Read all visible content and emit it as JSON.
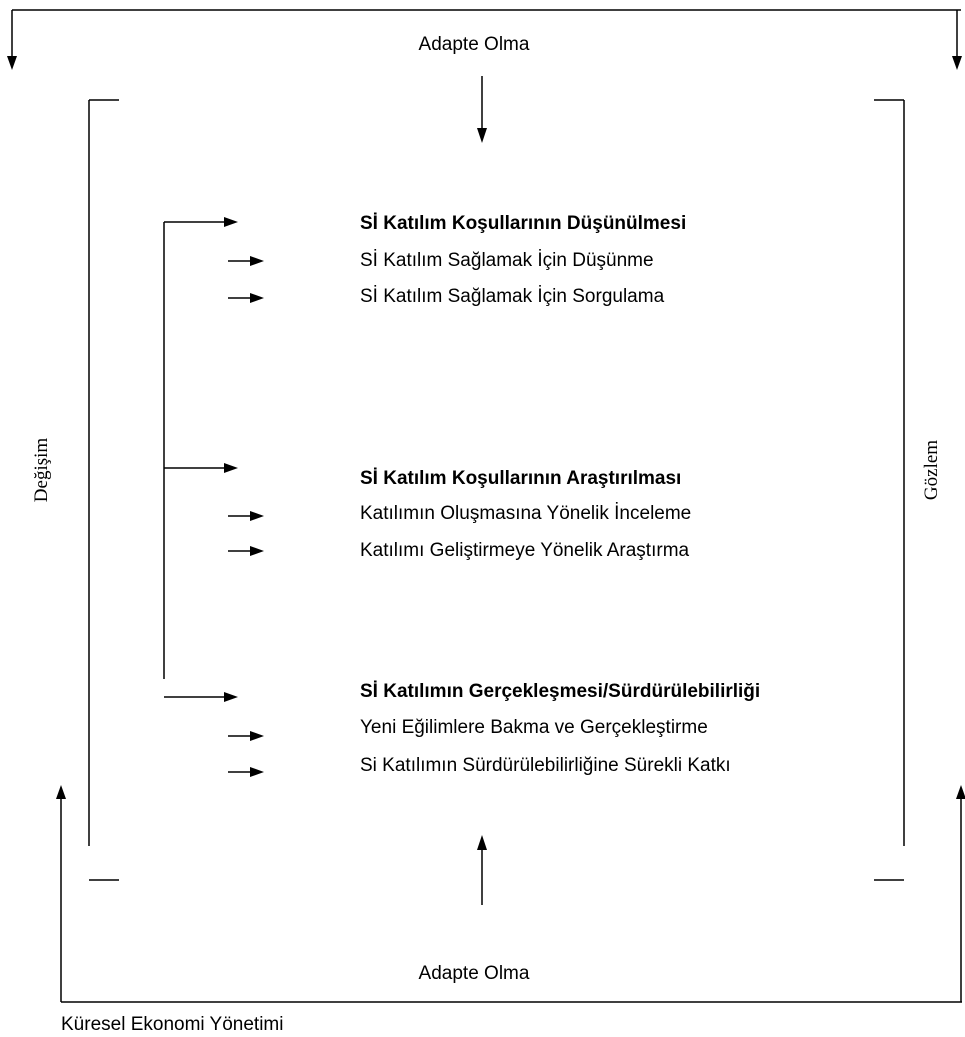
{
  "top_label": "Adapte Olma",
  "bottom_label": "Adapte Olma",
  "left_label": "Değişim",
  "right_label": "Gözlem",
  "footer_label": "Küresel Ekonomi Yönetimi",
  "sections": [
    {
      "heading": "Sİ Katılım Koşullarının Düşünülmesi",
      "items": [
        "Sİ Katılım Sağlamak İçin Düşünme",
        "Sİ Katılım Sağlamak İçin Sorgulama"
      ]
    },
    {
      "heading": "Sİ Katılım Koşullarının Araştırılması",
      "items": [
        "Katılımın Oluşmasına Yönelik İnceleme",
        "Katılımı Geliştirmeye Yönelik Araştırma"
      ]
    },
    {
      "heading": "Sİ Katılımın Gerçekleşmesi/Sürdürülebilirliği",
      "items": [
        "Yeni Eğilimlere Bakma ve Gerçekleştirme",
        "Si Katılımın Sürdürülebilirliğine Sürekli Katkı"
      ]
    }
  ]
}
